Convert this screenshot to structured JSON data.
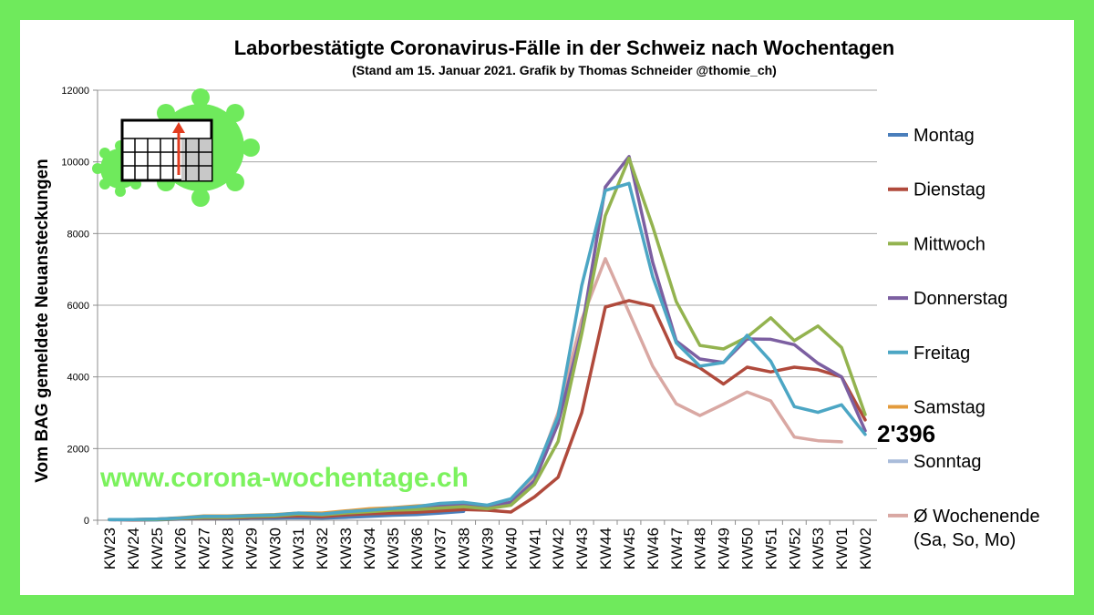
{
  "chart_data": {
    "type": "line",
    "title": "Laborbestätigte Coronavirus-Fälle in der Schweiz nach Wochentagen",
    "subtitle": "(Stand am 15. Januar 2021. Grafik by Thomas Schneider @thomie_ch)",
    "xlabel": "",
    "ylabel": "Vom BAG gemeldete Neuansteckungen",
    "ylim": [
      0,
      12000
    ],
    "yticks": [
      "0",
      "2000",
      "4000",
      "6000",
      "8000",
      "10000",
      "12000"
    ],
    "grid": true,
    "legend_position": "right",
    "categories": [
      "KW23",
      "KW24",
      "KW25",
      "KW26",
      "KW27",
      "KW28",
      "KW29",
      "KW30",
      "KW31",
      "KW32",
      "KW33",
      "KW34",
      "KW35",
      "KW36",
      "KW37",
      "KW38",
      "KW39",
      "KW40",
      "KW41",
      "KW42",
      "KW43",
      "KW44",
      "KW45",
      "KW46",
      "KW47",
      "KW48",
      "KW49",
      "KW50",
      "KW51",
      "KW52",
      "KW53",
      "KW01",
      "KW02"
    ],
    "series": [
      {
        "name": "Montag",
        "color": "#4a7ebb",
        "values": [
          20,
          10,
          10,
          30,
          50,
          40,
          60,
          60,
          70,
          60,
          80,
          110,
          140,
          160,
          200,
          250,
          null,
          null,
          null,
          null,
          null,
          null,
          null,
          null,
          null,
          null,
          null,
          null,
          null,
          null,
          null,
          null,
          null
        ]
      },
      {
        "name": "Dienstag",
        "color": "#b04a3c",
        "values": [
          20,
          10,
          20,
          40,
          60,
          60,
          80,
          100,
          120,
          100,
          150,
          180,
          200,
          220,
          260,
          300,
          280,
          230,
          650,
          1200,
          3000,
          5950,
          6130,
          5980,
          4550,
          4250,
          3800,
          4270,
          4140,
          4270,
          4200,
          4000,
          2800
        ]
      },
      {
        "name": "Mittwoch",
        "color": "#93b34f",
        "values": [
          20,
          20,
          20,
          50,
          80,
          80,
          110,
          120,
          170,
          150,
          200,
          240,
          280,
          300,
          340,
          380,
          320,
          420,
          1000,
          2200,
          5200,
          8500,
          10100,
          8200,
          6100,
          4880,
          4780,
          5110,
          5650,
          5010,
          5420,
          4820,
          2950
        ]
      },
      {
        "name": "Donnerstag",
        "color": "#7c5fa1",
        "values": [
          20,
          20,
          30,
          60,
          100,
          100,
          130,
          140,
          190,
          160,
          220,
          260,
          300,
          340,
          400,
          420,
          380,
          500,
          1100,
          2700,
          5300,
          9300,
          10150,
          7200,
          5000,
          4500,
          4400,
          5060,
          5050,
          4900,
          4380,
          4000,
          2500
        ]
      },
      {
        "name": "Freitag",
        "color": "#4ca6c4",
        "values": [
          20,
          20,
          30,
          60,
          110,
          110,
          130,
          150,
          200,
          170,
          240,
          280,
          330,
          380,
          470,
          500,
          420,
          600,
          1300,
          2900,
          6550,
          9200,
          9400,
          6800,
          4950,
          4300,
          4400,
          5160,
          4440,
          3170,
          3010,
          3220,
          2396
        ]
      },
      {
        "name": "Samstag",
        "color": "#e39b3c",
        "values": [
          20,
          20,
          30,
          70,
          120,
          120,
          140,
          160,
          200,
          200,
          260,
          320,
          350,
          400,
          430,
          420,
          370,
          500,
          null,
          null,
          null,
          null,
          null,
          null,
          null,
          null,
          null,
          null,
          null,
          null,
          null,
          null,
          null
        ]
      },
      {
        "name": "Sonntag",
        "color": "#a9bcda",
        "values": [
          10,
          10,
          20,
          40,
          70,
          80,
          100,
          110,
          120,
          130,
          170,
          220,
          260,
          310,
          350,
          380,
          330,
          430,
          null,
          null,
          null,
          null,
          null,
          null,
          null,
          null,
          null,
          null,
          null,
          null,
          null,
          null,
          null
        ]
      },
      {
        "name": "Ø Wochenende",
        "name_line2": "(Sa, So, Mo)",
        "color": "#d9a8a3",
        "values": [
          20,
          15,
          20,
          50,
          80,
          80,
          100,
          110,
          140,
          130,
          170,
          220,
          260,
          300,
          330,
          380,
          330,
          450,
          1200,
          3000,
          5600,
          7300,
          5800,
          4300,
          3250,
          2920,
          3240,
          3580,
          3330,
          2320,
          2220,
          2190,
          null
        ]
      }
    ],
    "annotations": [
      {
        "text": "2'396"
      }
    ]
  },
  "watermark": "www.corona-wochentage.ch",
  "logo": {
    "icon": "virus-calendar-icon",
    "virus_color": "#6fea5c",
    "arrow_color": "#e23c1f"
  }
}
